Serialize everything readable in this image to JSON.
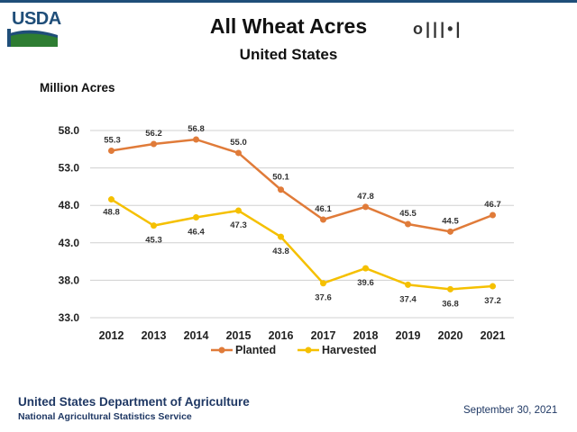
{
  "header": {
    "logo_text": "USDA",
    "decoration": "o|||•|"
  },
  "chart_data": {
    "type": "line",
    "title": "All Wheat Acres",
    "subtitle": "United States",
    "ylabel": "Million Acres",
    "xlabel": "",
    "categories": [
      "2012",
      "2013",
      "2014",
      "2015",
      "2016",
      "2017",
      "2018",
      "2019",
      "2020",
      "2021"
    ],
    "series": [
      {
        "name": "Planted",
        "color": "#e07b39",
        "values": [
          55.3,
          56.2,
          56.8,
          55.0,
          50.1,
          46.1,
          47.8,
          45.5,
          44.5,
          46.7
        ]
      },
      {
        "name": "Harvested",
        "color": "#f5c000",
        "values": [
          48.8,
          45.3,
          46.4,
          47.3,
          43.8,
          37.6,
          39.6,
          37.4,
          36.8,
          37.2
        ]
      }
    ],
    "ylim": [
      33.0,
      58.0
    ],
    "yticks": [
      "58.0",
      "53.0",
      "48.0",
      "43.0",
      "38.0",
      "33.0"
    ],
    "grid": true,
    "legend": "bottom"
  },
  "footer": {
    "org": "United States Department of Agriculture",
    "agency": "National Agricultural Statistics Service",
    "date": "September 30, 2021"
  }
}
